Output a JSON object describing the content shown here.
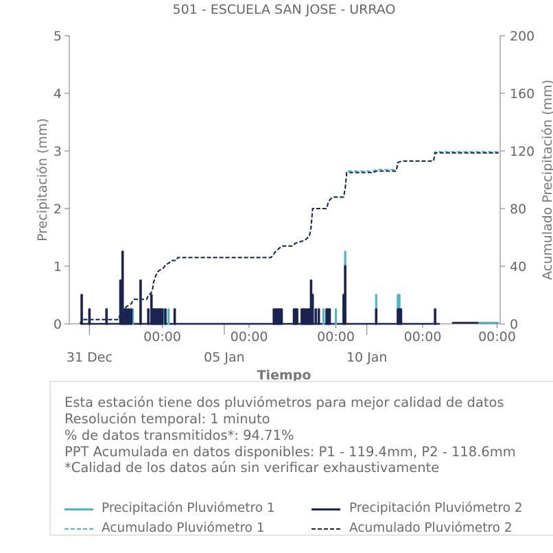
{
  "colors": {
    "p1": "#4db6c6",
    "p2": "#1b2450",
    "text": "#666666",
    "axis": "#777777"
  },
  "chart_data": {
    "type": "bar+line",
    "title": "501 - ESCUELA SAN JOSE - URRAO",
    "xlabel": "Tiempo",
    "ylabel_left": "Precipitación (mm)",
    "ylabel_right": "Acumulado Precipitación (mm)",
    "ylim_left": [
      0,
      5
    ],
    "ylim_right": [
      0,
      200
    ],
    "yticks_left": [
      "0",
      "1",
      "2",
      "3",
      "4",
      "5"
    ],
    "yticks_right": [
      "0",
      "40",
      "80",
      "120",
      "160",
      "200"
    ],
    "x_range_days": [
      -1.0,
      12.9
    ],
    "xticks_major": [
      {
        "day": 2.0,
        "label": "00:00"
      },
      {
        "day": 4.8,
        "label": "00:00"
      },
      {
        "day": 7.6,
        "label": "00:00"
      },
      {
        "day": 10.4,
        "label": "00:00"
      },
      {
        "day": 12.8,
        "label": "00:00"
      }
    ],
    "xticks_date": [
      {
        "day": -0.35,
        "label": "31 Dec"
      },
      {
        "day": 4.0,
        "label": "05 Jan"
      },
      {
        "day": 8.6,
        "label": "10 Jan"
      }
    ],
    "series_bars": [
      {
        "name": "Precipitación Pluviómetro 1",
        "x": [
          -0.6,
          -0.35,
          0.2,
          0.65,
          0.72,
          0.78,
          0.8,
          0.85,
          0.88,
          0.92,
          1.0,
          1.05,
          1.3,
          1.55,
          1.65,
          1.7,
          1.75,
          1.8,
          1.85,
          1.9,
          1.95,
          2.0,
          2.05,
          2.1,
          2.2,
          2.4,
          5.6,
          5.65,
          5.7,
          5.75,
          5.8,
          5.85,
          6.25,
          6.3,
          6.35,
          6.5,
          6.55,
          6.6,
          6.65,
          6.7,
          6.75,
          6.8,
          6.85,
          6.95,
          7.05,
          7.2,
          7.3,
          7.35,
          7.4,
          7.6,
          7.9,
          8.9,
          9.6,
          9.65,
          9.7,
          10.8
        ],
        "y": [
          0.5,
          0.25,
          0.25,
          0.75,
          1.25,
          0.25,
          0.25,
          0.25,
          0.25,
          0.25,
          0.25,
          0.25,
          0.75,
          0.25,
          0.5,
          0.25,
          0.25,
          0.25,
          0.25,
          0.25,
          0.25,
          0.25,
          0.25,
          0.25,
          0.25,
          0.25,
          0.25,
          0.25,
          0.25,
          0.25,
          0.25,
          0.25,
          0.25,
          0.25,
          0.25,
          0.25,
          0.25,
          0.25,
          0.25,
          0.25,
          0.25,
          0.75,
          0.5,
          0.25,
          0.25,
          0.25,
          0.25,
          0.25,
          0.25,
          0.25,
          1.25,
          0.5,
          0.5,
          0.5,
          0.25,
          0.25
        ]
      },
      {
        "name": "Precipitación Pluviómetro 2",
        "x": [
          -0.6,
          -0.35,
          0.2,
          0.65,
          0.72,
          0.78,
          0.85,
          0.92,
          1.0,
          1.3,
          1.55,
          1.65,
          1.7,
          1.75,
          1.8,
          1.85,
          1.9,
          1.95,
          2.0,
          2.1,
          2.4,
          5.6,
          5.65,
          5.7,
          5.75,
          5.8,
          5.85,
          6.25,
          6.3,
          6.35,
          6.5,
          6.55,
          6.6,
          6.65,
          6.7,
          6.75,
          6.8,
          6.85,
          6.95,
          7.05,
          7.3,
          7.35,
          7.4,
          7.85,
          7.9,
          8.9,
          9.6,
          9.65,
          9.7,
          10.8
        ],
        "y": [
          0.5,
          0.25,
          0.25,
          0.75,
          1.25,
          0.25,
          0.25,
          0.25,
          0.25,
          0.75,
          0.25,
          0.5,
          0.25,
          0.25,
          0.25,
          0.25,
          0.25,
          0.25,
          0.25,
          0.25,
          0.25,
          0.25,
          0.25,
          0.25,
          0.25,
          0.25,
          0.25,
          0.25,
          0.25,
          0.25,
          0.25,
          0.25,
          0.25,
          0.25,
          0.25,
          0.25,
          0.75,
          0.5,
          0.25,
          0.25,
          0.25,
          0.25,
          0.25,
          0.5,
          1.0,
          0.25,
          0.25,
          0.25,
          0.25,
          0.25
        ]
      }
    ],
    "series_lines": [
      {
        "name": "Acumulado Pluviómetro 1",
        "x": [
          -0.65,
          -0.6,
          0.6,
          0.65,
          0.85,
          1.0,
          1.05,
          1.1,
          1.5,
          1.55,
          1.62,
          1.68,
          1.72,
          1.78,
          1.85,
          1.9,
          2.05,
          2.1,
          2.2,
          2.3,
          2.45,
          2.5,
          5.5,
          5.55,
          5.65,
          5.75,
          5.85,
          6.2,
          6.3,
          6.45,
          6.6,
          6.75,
          6.8,
          6.85,
          7.3,
          7.35,
          7.4,
          7.5,
          7.85,
          7.9,
          7.95,
          8.8,
          8.9,
          9.55,
          9.6,
          9.75,
          10.75,
          10.8,
          12.85
        ],
        "y": [
          0,
          3,
          3,
          8,
          12,
          14,
          16,
          17,
          17,
          20,
          21,
          23,
          29,
          33,
          36,
          37,
          39,
          41,
          42,
          44,
          44,
          46,
          46,
          47,
          50,
          52,
          54,
          54,
          56,
          57,
          58,
          61,
          67,
          80,
          80,
          84,
          86,
          88,
          88,
          94,
          106,
          106,
          107,
          107,
          112,
          113,
          113,
          119.4,
          119.4
        ]
      },
      {
        "name": "Acumulado Pluviómetro 2",
        "x": [
          -0.65,
          -0.6,
          0.6,
          0.65,
          0.85,
          1.0,
          1.05,
          1.1,
          1.5,
          1.55,
          1.62,
          1.68,
          1.72,
          1.78,
          1.85,
          1.9,
          2.05,
          2.1,
          2.2,
          2.3,
          2.45,
          2.5,
          5.5,
          5.55,
          5.65,
          5.75,
          5.85,
          6.2,
          6.3,
          6.45,
          6.6,
          6.75,
          6.8,
          6.85,
          7.3,
          7.35,
          7.4,
          7.5,
          7.85,
          7.9,
          7.95,
          8.8,
          8.9,
          9.55,
          9.6,
          9.75,
          10.75,
          10.8,
          12.85
        ],
        "y": [
          0,
          3,
          3,
          8,
          12,
          14,
          16,
          17,
          17,
          20,
          21,
          23,
          29,
          33,
          36,
          37,
          39,
          41,
          42,
          44,
          44,
          46,
          46,
          47,
          50,
          52,
          54,
          54,
          56,
          57,
          58,
          61,
          67,
          80,
          80,
          84,
          86,
          88,
          88,
          94,
          105,
          105,
          106,
          106,
          112,
          113,
          113,
          118.6,
          118.6
        ]
      }
    ],
    "zero_lines": [
      {
        "name": "Precipitación Pluviómetro 2",
        "x": [
          -0.6,
          10.95
        ],
        "y": [
          0,
          0
        ]
      },
      {
        "name": "Precipitación Pluviómetro 2",
        "x": [
          11.35,
          12.2
        ],
        "y": [
          0.02,
          0.02
        ]
      },
      {
        "name": "Precipitación Pluviómetro 1",
        "x": [
          12.2,
          12.85
        ],
        "y": [
          0.02,
          0.02
        ]
      }
    ]
  },
  "info": {
    "lines": [
      "Esta estación tiene dos pluviómetros para mejor calidad de datos",
      "Resolución temporal: 1 minuto",
      "% de datos transmitidos*: 94.71%",
      "PPT Acumulada en datos disponibles: P1 - 119.4mm, P2 - 118.6mm",
      "*Calidad de los datos aún sin verificar exhaustivamente"
    ]
  },
  "legend": {
    "p1_bar": "Precipitación Pluviómetro 1",
    "p2_bar": "Precipitación Pluviómetro 2",
    "p1_line": "Acumulado Pluviómetro 1",
    "p2_line": "Acumulado Pluviómetro 2"
  }
}
